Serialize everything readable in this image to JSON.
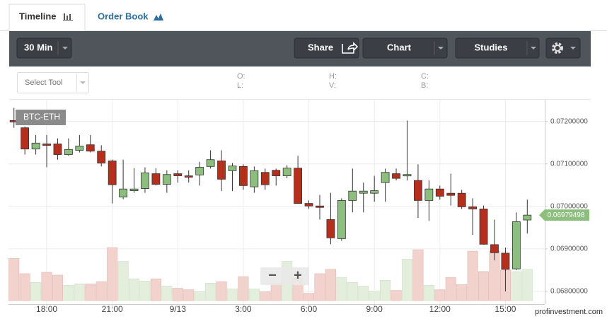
{
  "tabs": [
    "Timeline",
    "Order Book"
  ],
  "toolbar": {
    "interval": "30 Min",
    "share": "Share",
    "chart": "Chart",
    "studies": "Studies"
  },
  "select_tool": "Select Tool",
  "ohlc_labels": [
    "O:",
    "L:",
    "H:",
    "V:",
    "C:",
    "B:"
  ],
  "zoom": [
    "−",
    "+"
  ],
  "watermark": "profinvestment.com",
  "chart_data": {
    "type": "candlestick",
    "title": "BTC-ETH",
    "x": [
      16.5,
      17,
      17.5,
      18,
      18.5,
      19,
      19.5,
      20,
      20.5,
      21,
      21.5,
      22,
      22.5,
      23,
      23.5,
      24,
      24.5,
      25,
      25.5,
      26,
      26.5,
      27,
      27.5,
      28,
      28.5,
      29,
      29.5,
      30,
      30.5,
      31,
      31.5,
      32,
      32.5,
      33,
      33.5,
      34,
      34.5,
      35,
      35.5,
      36,
      36.5,
      37,
      37.5,
      38,
      38.5,
      39,
      39.5,
      40
    ],
    "open": [
      0.07202,
      0.07185,
      0.07135,
      0.07147,
      0.07147,
      0.07122,
      0.07132,
      0.07145,
      0.0713,
      0.07107,
      0.07022,
      0.07037,
      0.07042,
      0.07077,
      0.07052,
      0.07077,
      0.07072,
      0.07074,
      0.07094,
      0.07107,
      0.07084,
      0.07094,
      0.07046,
      0.0708,
      0.07085,
      0.07072,
      0.0709,
      0.07007,
      0.07001,
      0.06969,
      0.06924,
      0.07014,
      0.07031,
      0.07031,
      0.07056,
      0.07077,
      0.07072,
      0.07061,
      0.07014,
      0.07041,
      0.07031,
      0.07031,
      0.06999,
      0.06994,
      0.0691,
      0.0689,
      0.06853,
      0.06968
    ],
    "high": [
      0.07232,
      0.07188,
      0.07168,
      0.07168,
      0.0716,
      0.0716,
      0.07168,
      0.07168,
      0.07144,
      0.0711,
      0.0711,
      0.0709,
      0.07092,
      0.0709,
      0.07085,
      0.07085,
      0.07085,
      0.07105,
      0.07132,
      0.07132,
      0.07102,
      0.07099,
      0.07094,
      0.07089,
      0.07089,
      0.07097,
      0.07119,
      0.07014,
      0.07027,
      0.07032,
      0.07019,
      0.07089,
      0.07056,
      0.07072,
      0.07089,
      0.07089,
      0.07202,
      0.07099,
      0.07061,
      0.07049,
      0.07077,
      0.07039,
      0.07019,
      0.07002,
      0.06969,
      0.06903,
      0.06986,
      0.07016
    ],
    "low": [
      0.07185,
      0.07122,
      0.07122,
      0.07092,
      0.0711,
      0.07119,
      0.07127,
      0.07127,
      0.07094,
      0.07007,
      0.07017,
      0.07032,
      0.07032,
      0.07049,
      0.07032,
      0.07056,
      0.07056,
      0.07049,
      0.07089,
      0.07036,
      0.07036,
      0.07039,
      0.07032,
      0.07039,
      0.07049,
      0.07066,
      0.07006,
      0.06994,
      0.06969,
      0.06911,
      0.06919,
      0.06986,
      0.06986,
      0.07011,
      0.07011,
      0.07061,
      0.07061,
      0.06973,
      0.06966,
      0.07016,
      0.07002,
      0.06994,
      0.06933,
      0.0691,
      0.06873,
      0.068,
      0.0685,
      0.06936
    ],
    "close": [
      0.072,
      0.07135,
      0.07149,
      0.07145,
      0.07122,
      0.07134,
      0.07142,
      0.0713,
      0.07102,
      0.07051,
      0.07041,
      0.07041,
      0.07079,
      0.07052,
      0.07075,
      0.07072,
      0.07071,
      0.07092,
      0.0711,
      0.07064,
      0.07095,
      0.07049,
      0.07084,
      0.07051,
      0.07072,
      0.0709,
      0.07007,
      0.07001,
      0.07,
      0.06926,
      0.07014,
      0.07036,
      0.07036,
      0.07037,
      0.0708,
      0.07066,
      0.07075,
      0.07014,
      0.07041,
      0.07024,
      0.07026,
      0.06999,
      0.06994,
      0.06911,
      0.06891,
      0.06852,
      0.06964,
      0.06979498
    ],
    "volume": [
      58,
      37,
      25,
      39,
      35,
      21,
      23,
      23,
      26,
      73,
      54,
      30,
      27,
      30,
      20,
      17,
      15,
      12,
      24,
      26,
      16,
      33,
      16,
      12,
      24,
      54,
      31,
      10,
      37,
      43,
      32,
      25,
      20,
      13,
      28,
      14,
      57,
      70,
      21,
      15,
      32,
      22,
      68,
      40,
      68,
      42,
      40,
      43
    ],
    "up_color": "#8cbf7d",
    "down_color": "#b52f1c",
    "up_volume_color": "#e3efdc",
    "down_volume_color": "#f1d2cc",
    "xlim": [
      16.25,
      40.8
    ],
    "xticks": [
      {
        "value": 18,
        "label": "18:00"
      },
      {
        "value": 21,
        "label": "21:00"
      },
      {
        "value": 24,
        "label": "9/13"
      },
      {
        "value": 27,
        "label": "3:00"
      },
      {
        "value": 30,
        "label": "6:00"
      },
      {
        "value": 33,
        "label": "9:00"
      },
      {
        "value": 36,
        "label": "12:00"
      },
      {
        "value": 39,
        "label": "15:00"
      }
    ],
    "ylim": [
      0.0677,
      0.07251
    ],
    "yticks": [
      {
        "value": 0.068,
        "label": "0.06800000"
      },
      {
        "value": 0.069,
        "label": "0.06900000"
      },
      {
        "value": 0.07,
        "label": "0.07000000"
      },
      {
        "value": 0.071,
        "label": "0.07100000"
      },
      {
        "value": 0.072,
        "label": "0.07200000"
      }
    ],
    "grid": true
  }
}
